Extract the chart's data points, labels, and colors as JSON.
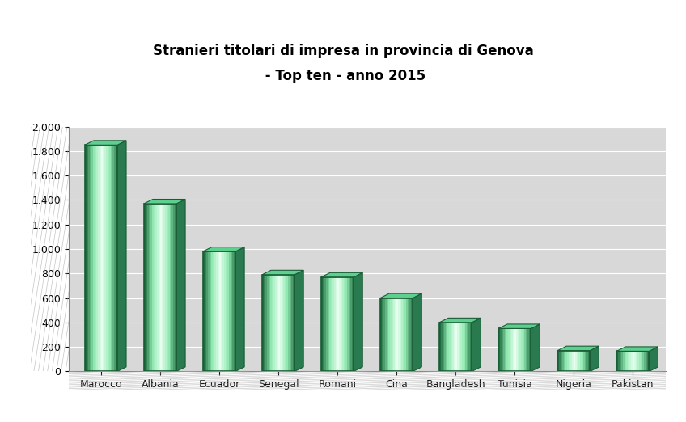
{
  "title_line1": "Stranieri titolari di impresa in provincia di Genova",
  "title_line2": " - Top ten - anno 2015",
  "categories": [
    "Marocco",
    "Albania",
    "Ecuador",
    "Senegal",
    "Romani",
    "Cina",
    "Bangladesh",
    "Tunisia",
    "Nigeria",
    "Pakistan"
  ],
  "values": [
    1850,
    1370,
    980,
    790,
    770,
    600,
    400,
    350,
    170,
    165
  ],
  "ylim": [
    0,
    2000
  ],
  "yticks": [
    0,
    200,
    400,
    600,
    800,
    1000,
    1200,
    1400,
    1600,
    1800,
    2000
  ],
  "ytick_labels": [
    "0",
    "200",
    "400",
    "600",
    "800",
    "1.000",
    "1.200",
    "1.400",
    "1.600",
    "1.800",
    "2.000"
  ],
  "bar_color_main": "#3db87a",
  "bar_color_dark": "#1e6b40",
  "bar_color_light": "#b8f0d0",
  "bar_color_edge": "#1a5c35",
  "figure_bg": "#ffffff",
  "plot_bg_light": "#d8d8d8",
  "plot_bg_dark": "#b0b0b0",
  "grid_color": "#ffffff",
  "hatch_bg": "#b0b0b0",
  "floor_color": "#a8a8a8",
  "title_fontsize": 12,
  "axis_fontsize": 9,
  "bar_width": 0.55,
  "depth": 0.15
}
